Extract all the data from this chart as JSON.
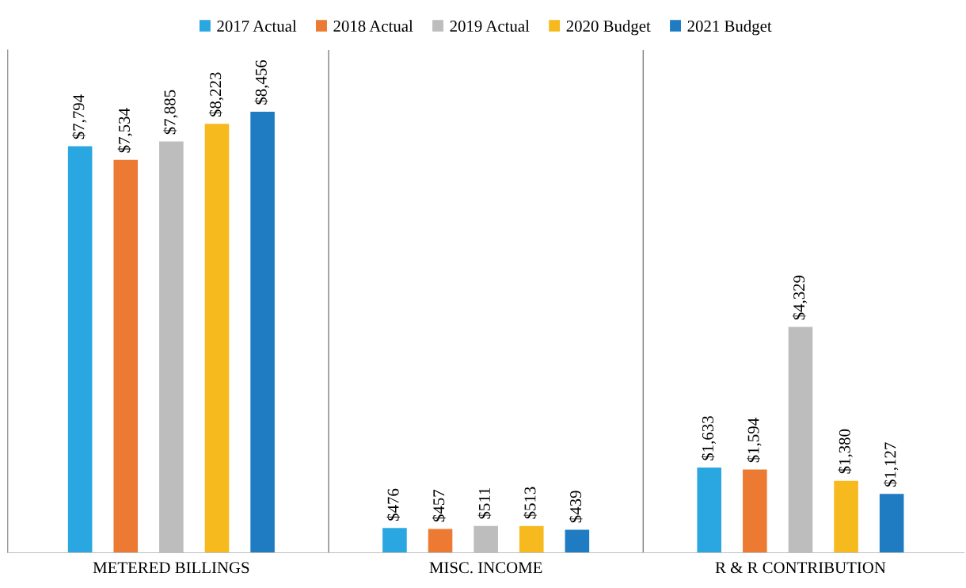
{
  "chart_data": {
    "type": "bar",
    "categories": [
      "METERED BILLINGS",
      "MISC. INCOME",
      "R & R CONTRIBUTION"
    ],
    "series": [
      {
        "name": "2017 Actual",
        "color": "#2aa7e0",
        "values": [
          7794,
          476,
          1633
        ],
        "value_labels": [
          "$7,794",
          "$476",
          "$1,633"
        ]
      },
      {
        "name": "2018 Actual",
        "color": "#ec7a32",
        "values": [
          7534,
          457,
          1594
        ],
        "value_labels": [
          "$7,534",
          "$457",
          "$1,594"
        ]
      },
      {
        "name": "2019 Actual",
        "color": "#bdbdbd",
        "values": [
          7885,
          511,
          4329
        ],
        "value_labels": [
          "$7,885",
          "$511",
          "$4,329"
        ]
      },
      {
        "name": "2020 Budget",
        "color": "#f6ba1e",
        "values": [
          8223,
          513,
          1380
        ],
        "value_labels": [
          "$8,223",
          "$513",
          "$1,380"
        ]
      },
      {
        "name": "2021 Budget",
        "color": "#1f7cc2",
        "values": [
          8456,
          439,
          1127
        ],
        "value_labels": [
          "$8,456",
          "$439",
          "$1,127"
        ]
      }
    ],
    "legend": "top"
  }
}
